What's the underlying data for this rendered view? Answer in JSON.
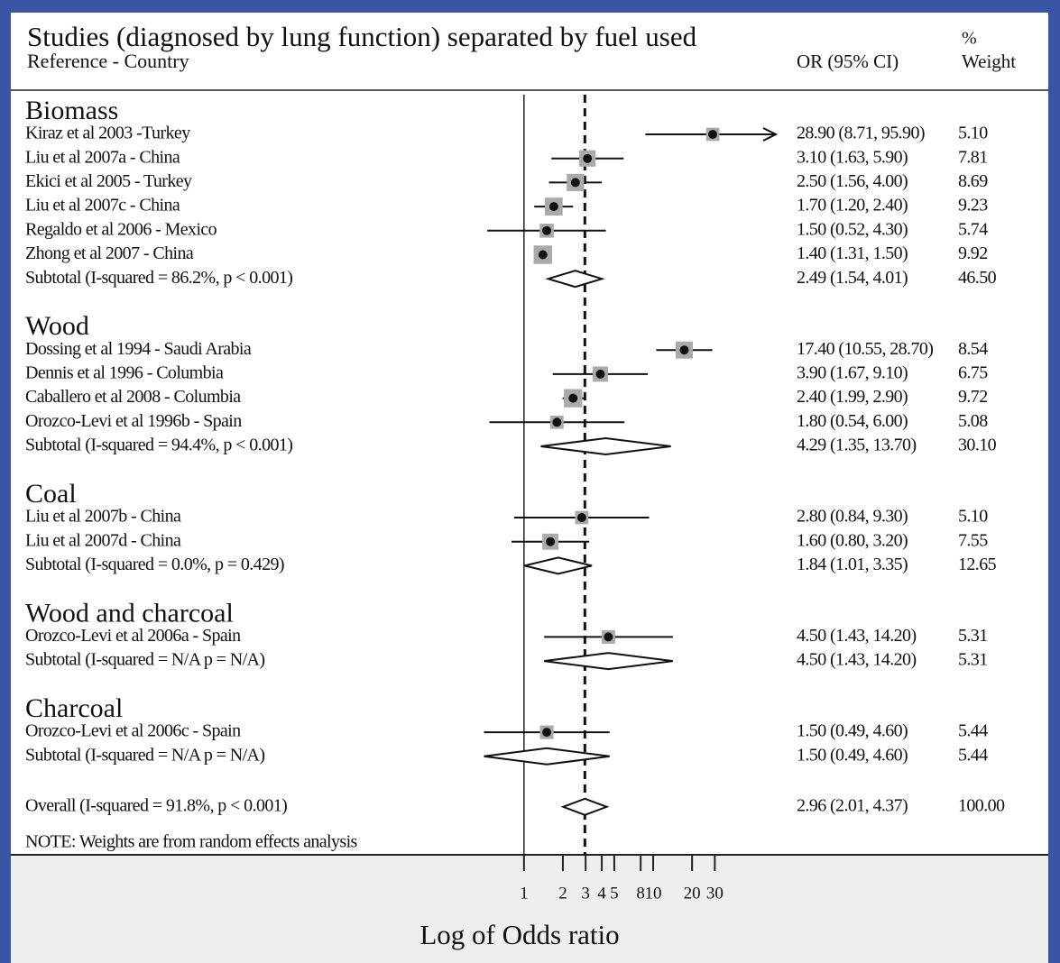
{
  "chart_data": {
    "type": "forest",
    "title": "Studies (diagnosed by lung function) separated by fuel used",
    "reference_header": "Reference - Country",
    "or_header": "OR (95% CI)",
    "weight_header_top": "%",
    "weight_header": "Weight",
    "xlabel": "Log of Odds ratio",
    "note": "NOTE: Weights are from random effects analysis",
    "xscale": "log",
    "xlim": [
      0.31,
      89
    ],
    "xticks": [
      1,
      2,
      3,
      4,
      5,
      8,
      10,
      20,
      30
    ],
    "marker_color": "#aaaaaa",
    "groups": [
      {
        "name": "Biomass",
        "studies": [
          {
            "label": "Kiraz et al 2003 -Turkey",
            "or": 28.9,
            "ci": [
              8.71,
              95.9
            ],
            "weight": 5.1,
            "or_label": "28.90 (8.71, 95.90)",
            "weight_label": "5.10"
          },
          {
            "label": "Liu et al 2007a - China",
            "or": 3.1,
            "ci": [
              1.63,
              5.9
            ],
            "weight": 7.81,
            "or_label": "3.10 (1.63, 5.90)",
            "weight_label": "7.81"
          },
          {
            "label": "Ekici et al 2005 - Turkey",
            "or": 2.5,
            "ci": [
              1.56,
              4.0
            ],
            "weight": 8.69,
            "or_label": "2.50 (1.56, 4.00)",
            "weight_label": "8.69"
          },
          {
            "label": "Liu et al 2007c - China",
            "or": 1.7,
            "ci": [
              1.2,
              2.4
            ],
            "weight": 9.23,
            "or_label": "1.70 (1.20, 2.40)",
            "weight_label": "9.23"
          },
          {
            "label": "Regaldo et al 2006 - Mexico",
            "or": 1.5,
            "ci": [
              0.52,
              4.3
            ],
            "weight": 5.74,
            "or_label": "1.50 (0.52, 4.30)",
            "weight_label": "5.74"
          },
          {
            "label": "Zhong et al 2007 - China",
            "or": 1.4,
            "ci": [
              1.31,
              1.5
            ],
            "weight": 9.92,
            "or_label": "1.40 (1.31, 1.50)",
            "weight_label": "9.92"
          }
        ],
        "subtotal": {
          "label": "Subtotal (I-squared = 86.2%, p < 0.001)",
          "or": 2.49,
          "ci": [
            1.54,
            4.01
          ],
          "weight": 46.5,
          "or_label": "2.49 (1.54, 4.01)",
          "weight_label": "46.50"
        }
      },
      {
        "name": "Wood",
        "studies": [
          {
            "label": "Dossing et al 1994 - Saudi Arabia",
            "or": 17.4,
            "ci": [
              10.55,
              28.7
            ],
            "weight": 8.54,
            "or_label": "17.40 (10.55, 28.70)",
            "weight_label": "8.54"
          },
          {
            "label": "Dennis et al 1996 - Columbia",
            "or": 3.9,
            "ci": [
              1.67,
              9.1
            ],
            "weight": 6.75,
            "or_label": "3.90 (1.67, 9.10)",
            "weight_label": "6.75"
          },
          {
            "label": "Caballero et al 2008 - Columbia",
            "or": 2.4,
            "ci": [
              1.99,
              2.9
            ],
            "weight": 9.72,
            "or_label": "2.40 (1.99, 2.90)",
            "weight_label": "9.72"
          },
          {
            "label": "Orozco-Levi et al 1996b - Spain",
            "or": 1.8,
            "ci": [
              0.54,
              6.0
            ],
            "weight": 5.08,
            "or_label": "1.80 (0.54, 6.00)",
            "weight_label": "5.08"
          }
        ],
        "subtotal": {
          "label": "Subtotal (I-squared = 94.4%, p < 0.001)",
          "or": 4.29,
          "ci": [
            1.35,
            13.7
          ],
          "weight": 30.1,
          "or_label": "4.29 (1.35, 13.70)",
          "weight_label": "30.10"
        }
      },
      {
        "name": "Coal",
        "studies": [
          {
            "label": "Liu et al 2007b - China",
            "or": 2.8,
            "ci": [
              0.84,
              9.3
            ],
            "weight": 5.1,
            "or_label": "2.80 (0.84, 9.30)",
            "weight_label": "5.10"
          },
          {
            "label": "Liu et al 2007d - China",
            "or": 1.6,
            "ci": [
              0.8,
              3.2
            ],
            "weight": 7.55,
            "or_label": "1.60 (0.80, 3.20)",
            "weight_label": "7.55"
          }
        ],
        "subtotal": {
          "label": "Subtotal (I-squared = 0.0%, p = 0.429)",
          "or": 1.84,
          "ci": [
            1.01,
            3.35
          ],
          "weight": 12.65,
          "or_label": "1.84 (1.01, 3.35)",
          "weight_label": "12.65"
        }
      },
      {
        "name": "Wood and charcoal",
        "studies": [
          {
            "label": "Orozco-Levi et al 2006a - Spain",
            "or": 4.5,
            "ci": [
              1.43,
              14.2
            ],
            "weight": 5.31,
            "or_label": "4.50 (1.43, 14.20)",
            "weight_label": "5.31"
          }
        ],
        "subtotal": {
          "label": "Subtotal (I-squared = N/A  p = N/A)",
          "or": 4.5,
          "ci": [
            1.43,
            14.2
          ],
          "weight": 5.31,
          "or_label": "4.50 (1.43, 14.20)",
          "weight_label": "5.31"
        }
      },
      {
        "name": "Charcoal",
        "studies": [
          {
            "label": "Orozco-Levi et al 2006c - Spain",
            "or": 1.5,
            "ci": [
              0.49,
              4.6
            ],
            "weight": 5.44,
            "or_label": "1.50 (0.49, 4.60)",
            "weight_label": "5.44"
          }
        ],
        "subtotal": {
          "label": "Subtotal (I-squared = N/A  p = N/A)",
          "or": 1.5,
          "ci": [
            0.49,
            4.6
          ],
          "weight": 5.44,
          "or_label": "1.50 (0.49, 4.60)",
          "weight_label": "5.44"
        }
      }
    ],
    "overall": {
      "label": "Overall (I-squared = 91.8%, p < 0.001)",
      "or": 2.96,
      "ci": [
        2.01,
        4.37
      ],
      "weight": 100.0,
      "or_label": "2.96 (2.01, 4.37)",
      "weight_label": "100.00"
    }
  }
}
